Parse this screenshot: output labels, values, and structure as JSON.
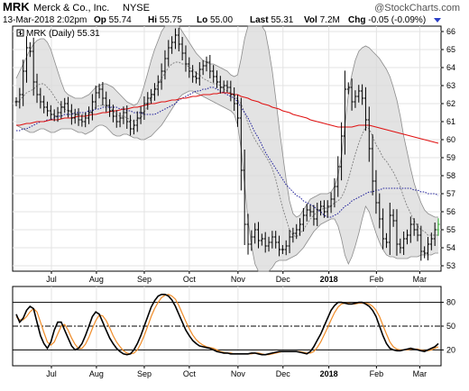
{
  "header": {
    "symbol": "MRK",
    "company": "Merck & Co., Inc.",
    "exchange": "NYSE",
    "watermark": "@StockCharts.com",
    "datetime": "13-Mar-2018 2:02pm",
    "quote": {
      "open_label": "Op",
      "open": "55.74",
      "high_label": "Hi",
      "high": "55.75",
      "low_label": "Lo",
      "low": "55.00",
      "last_label": "Last",
      "last": "55.31",
      "vol_label": "Vol",
      "vol": "7.2M",
      "chg_label": "Chg",
      "chg": "-0.05 (-0.09%)"
    }
  },
  "legend": {
    "label": "MRK (Daily) 55.31"
  },
  "chart_data": [
    {
      "type": "line",
      "name": "price",
      "ylim": [
        52.7,
        66.3
      ],
      "yticks": [
        53,
        54,
        55,
        56,
        57,
        58,
        59,
        60,
        61,
        62,
        63,
        64,
        65,
        66
      ],
      "xlabels": [
        {
          "label": "Jul",
          "pos": 0.125
        },
        {
          "label": "Aug",
          "pos": 0.285
        },
        {
          "label": "Sep",
          "pos": 0.455
        },
        {
          "label": "Oct",
          "pos": 0.615
        },
        {
          "label": "Nov",
          "pos": 0.788
        },
        {
          "label": "Dec",
          "pos": 0.948
        },
        {
          "label": "2018",
          "pos": 1.111
        },
        {
          "label": "Feb",
          "pos": 1.28
        },
        {
          "label": "Mar",
          "pos": 1.434
        }
      ],
      "close": [
        62.1,
        62.5,
        63.8,
        65.1,
        64.9,
        63.2,
        62.5,
        62.1,
        61.8,
        61.6,
        61.4,
        61.3,
        61.5,
        61.8,
        62.0,
        61.6,
        61.2,
        61.4,
        61.1,
        61.0,
        61.2,
        61.5,
        62.1,
        62.6,
        62.8,
        62.3,
        61.9,
        61.6,
        61.3,
        61.0,
        61.2,
        61.5,
        61.0,
        60.6,
        60.8,
        61.2,
        61.5,
        62.0,
        62.3,
        62.5,
        62.8,
        63.2,
        63.8,
        64.5,
        65.1,
        65.4,
        65.8,
        65.3,
        64.8,
        64.2,
        63.8,
        63.5,
        63.4,
        63.9,
        64.1,
        64.3,
        63.8,
        63.5,
        63.2,
        62.9,
        63.0,
        62.9,
        62.5,
        62.0,
        61.2,
        58.3,
        55.3,
        54.2,
        54.6,
        55.0,
        54.4,
        54.5,
        54.1,
        54.3,
        54.6,
        54.3,
        53.9,
        53.9,
        54.1,
        54.6,
        54.8,
        55.0,
        55.3,
        55.8,
        56.1,
        56.0,
        55.6,
        56.1,
        56.3,
        56.0,
        56.3,
        56.7,
        57.4,
        58.5,
        60.2,
        62.8,
        62.9,
        62.1,
        62.4,
        62.7,
        62.3,
        61.1,
        59.5,
        57.7,
        56.5,
        55.6,
        54.5,
        54.3,
        55.8,
        55.5,
        54.2,
        54.0,
        54.5,
        54.7,
        55.3,
        55.0,
        54.7,
        53.8,
        53.7,
        54.2,
        54.5,
        55.0,
        55.3
      ],
      "upper_band": [
        63.4,
        63.8,
        64.2,
        64.6,
        65.0,
        65.3,
        65.5,
        65.6,
        65.6,
        65.4,
        65.0,
        64.4,
        63.8,
        63.2,
        62.7,
        62.5,
        62.4,
        62.3,
        62.3,
        62.3,
        62.4,
        62.5,
        62.7,
        62.9,
        63.0,
        63.1,
        63.1,
        63.0,
        62.9,
        62.7,
        62.5,
        62.3,
        62.1,
        62.0,
        61.9,
        62.0,
        62.4,
        63.0,
        63.7,
        64.4,
        65.0,
        65.5,
        66.0,
        66.4,
        66.6,
        66.6,
        66.5,
        66.3,
        66.0,
        65.7,
        65.4,
        65.1,
        64.8,
        64.6,
        64.4,
        64.3,
        64.2,
        64.2,
        64.1,
        64.0,
        63.9,
        63.8,
        63.6,
        63.5,
        63.6,
        64.5,
        65.6,
        66.3,
        66.8,
        67.0,
        67.0,
        66.7,
        66.0,
        65.0,
        63.8,
        62.3,
        60.7,
        59.2,
        57.8,
        56.6,
        55.9,
        55.7,
        55.8,
        56.1,
        56.4,
        56.7,
        56.8,
        56.9,
        57.0,
        57.0,
        57.0,
        57.1,
        57.4,
        58.0,
        59.1,
        60.8,
        62.5,
        63.6,
        64.4,
        64.9,
        65.1,
        65.2,
        65.1,
        64.9,
        64.7,
        64.5,
        64.2,
        63.9,
        63.5,
        62.9,
        62.2,
        61.3,
        60.2,
        59.3,
        58.4,
        57.6,
        57.0,
        56.5,
        56.1,
        55.9,
        55.8,
        55.7,
        55.7
      ],
      "lower_band": [
        60.8,
        60.7,
        60.6,
        60.5,
        60.4,
        60.4,
        60.5,
        60.6,
        60.6,
        60.5,
        60.4,
        60.4,
        60.5,
        60.6,
        60.6,
        60.6,
        60.6,
        60.5,
        60.4,
        60.4,
        60.3,
        60.4,
        60.5,
        60.7,
        60.8,
        60.8,
        60.7,
        60.5,
        60.3,
        60.2,
        60.2,
        60.3,
        60.3,
        60.2,
        60.1,
        60.1,
        60.0,
        60.0,
        60.1,
        60.2,
        60.4,
        60.6,
        60.8,
        61.1,
        61.4,
        61.7,
        62.0,
        62.3,
        62.5,
        62.6,
        62.7,
        62.7,
        62.6,
        62.5,
        62.4,
        62.3,
        62.2,
        62.1,
        62.0,
        61.9,
        61.8,
        61.7,
        61.6,
        61.4,
        60.8,
        59.5,
        57.5,
        55.5,
        54.1,
        53.1,
        52.5,
        52.2,
        52.3,
        52.6,
        52.9,
        53.2,
        53.3,
        53.3,
        53.3,
        53.4,
        53.5,
        53.6,
        53.8,
        54.0,
        54.3,
        54.6,
        54.9,
        55.1,
        55.3,
        55.4,
        55.5,
        55.6,
        55.6,
        55.2,
        54.5,
        53.6,
        53.1,
        53.5,
        54.1,
        54.8,
        55.6,
        56.3,
        56.0,
        55.4,
        54.8,
        54.3,
        53.9,
        53.6,
        53.5,
        53.5,
        53.4,
        53.4,
        53.4,
        53.4,
        53.5,
        53.5,
        53.5,
        53.6,
        53.6,
        53.6,
        53.6,
        53.7,
        53.7
      ],
      "sma_20": [
        62.1,
        62.2,
        62.4,
        62.6,
        62.7,
        62.8,
        63.0,
        63.1,
        63.1,
        62.9,
        62.7,
        62.4,
        62.1,
        61.9,
        61.7,
        61.6,
        61.5,
        61.4,
        61.4,
        61.4,
        61.4,
        61.4,
        61.6,
        61.8,
        61.9,
        61.9,
        61.9,
        61.8,
        61.6,
        61.4,
        61.3,
        61.3,
        61.2,
        61.1,
        61.0,
        61.1,
        61.2,
        61.5,
        61.9,
        62.3,
        62.7,
        63.1,
        63.4,
        63.7,
        64.0,
        64.2,
        64.3,
        64.3,
        64.2,
        64.2,
        64.0,
        63.9,
        63.7,
        63.6,
        63.4,
        63.3,
        63.2,
        63.1,
        63.1,
        63.0,
        62.8,
        62.7,
        62.6,
        62.5,
        62.2,
        62.0,
        61.5,
        60.9,
        60.4,
        60.0,
        59.7,
        59.4,
        59.1,
        58.8,
        58.4,
        57.8,
        57.0,
        56.2,
        55.6,
        55.0,
        54.7,
        54.6,
        54.8,
        55.0,
        55.3,
        55.6,
        55.8,
        56.0,
        56.1,
        56.2,
        56.2,
        56.3,
        56.5,
        56.6,
        56.8,
        57.2,
        57.8,
        58.5,
        59.2,
        59.8,
        60.3,
        60.7,
        60.6,
        60.2,
        59.7,
        59.4,
        59.0,
        58.8,
        58.5,
        58.2,
        57.8,
        57.4,
        56.8,
        56.3,
        55.9,
        55.5,
        55.2,
        55.0,
        54.9,
        54.7,
        54.7,
        54.7,
        54.7
      ],
      "ma_50": [
        60.5,
        60.5,
        60.6,
        60.6,
        60.7,
        60.8,
        60.9,
        61.0,
        61.0,
        61.1,
        61.1,
        61.2,
        61.3,
        61.3,
        61.4,
        61.4,
        61.4,
        61.5,
        61.5,
        61.5,
        61.5,
        61.6,
        61.6,
        61.7,
        61.7,
        61.8,
        61.8,
        61.8,
        61.8,
        61.8,
        61.7,
        61.7,
        61.6,
        61.6,
        61.5,
        61.5,
        61.5,
        61.4,
        61.4,
        61.4,
        61.4,
        61.5,
        61.6,
        61.7,
        61.8,
        61.9,
        62.0,
        62.2,
        62.3,
        62.4,
        62.5,
        62.6,
        62.7,
        62.7,
        62.8,
        62.8,
        62.9,
        62.9,
        62.8,
        62.7,
        62.6,
        62.5,
        62.4,
        62.3,
        62.1,
        61.8,
        61.5,
        61.2,
        60.8,
        60.4,
        60.1,
        59.7,
        59.3,
        59.0,
        58.7,
        58.4,
        58.1,
        57.8,
        57.5,
        57.3,
        57.1,
        56.9,
        56.8,
        56.6,
        56.5,
        56.4,
        56.3,
        56.1,
        56.0,
        55.8,
        55.7,
        55.7,
        55.8,
        55.9,
        56.1,
        56.3,
        56.4,
        56.6,
        56.7,
        56.8,
        56.9,
        57.0,
        57.1,
        57.1,
        57.2,
        57.2,
        57.3,
        57.3,
        57.3,
        57.3,
        57.3,
        57.3,
        57.3,
        57.3,
        57.3,
        57.2,
        57.2,
        57.1,
        57.1,
        57.0,
        57.0,
        57.0,
        56.9
      ],
      "ma_200": [
        60.8,
        60.8,
        60.85,
        60.9,
        60.9,
        60.95,
        61.0,
        61.0,
        61.0,
        61.05,
        61.1,
        61.1,
        61.1,
        61.15,
        61.2,
        61.2,
        61.2,
        61.25,
        61.3,
        61.3,
        61.3,
        61.35,
        61.4,
        61.4,
        61.45,
        61.5,
        61.5,
        61.55,
        61.6,
        61.6,
        61.65,
        61.7,
        61.7,
        61.75,
        61.8,
        61.8,
        61.85,
        61.9,
        61.95,
        62.0,
        62.0,
        62.05,
        62.1,
        62.1,
        62.15,
        62.2,
        62.2,
        62.25,
        62.3,
        62.3,
        62.35,
        62.4,
        62.4,
        62.45,
        62.5,
        62.5,
        62.5,
        62.55,
        62.55,
        62.6,
        62.6,
        62.6,
        62.55,
        62.5,
        62.5,
        62.4,
        62.35,
        62.3,
        62.2,
        62.15,
        62.1,
        62.0,
        61.95,
        61.9,
        61.8,
        61.75,
        61.7,
        61.6,
        61.55,
        61.5,
        61.4,
        61.35,
        61.3,
        61.25,
        61.2,
        61.1,
        61.05,
        61.0,
        60.95,
        60.9,
        60.85,
        60.8,
        60.75,
        60.7,
        60.7,
        60.7,
        60.7,
        60.7,
        60.75,
        60.8,
        60.8,
        60.8,
        60.8,
        60.75,
        60.7,
        60.65,
        60.6,
        60.55,
        60.5,
        60.45,
        60.4,
        60.35,
        60.3,
        60.25,
        60.2,
        60.15,
        60.1,
        60.05,
        60.0,
        59.95,
        59.9,
        59.85,
        59.8
      ]
    },
    {
      "type": "line",
      "name": "stochastic",
      "ylim": [
        0,
        100
      ],
      "yticks": [
        20,
        50,
        80
      ],
      "reference_lines": [
        20,
        50,
        80
      ],
      "k_line": [
        65,
        55,
        60,
        70,
        75,
        72,
        55,
        38,
        28,
        22,
        30,
        45,
        55,
        55,
        45,
        35,
        25,
        20,
        22,
        28,
        38,
        50,
        62,
        68,
        65,
        55,
        45,
        35,
        28,
        22,
        18,
        15,
        14,
        15,
        20,
        28,
        38,
        50,
        62,
        74,
        82,
        88,
        90,
        90,
        88,
        83,
        75,
        65,
        55,
        45,
        38,
        32,
        28,
        25,
        24,
        23,
        22,
        20,
        18,
        17,
        16,
        16,
        15,
        15,
        15,
        15,
        15,
        15,
        16,
        16,
        15,
        14,
        14,
        15,
        16,
        17,
        18,
        18,
        18,
        18,
        18,
        18,
        17,
        16,
        15,
        18,
        24,
        32,
        40,
        50,
        60,
        70,
        76,
        80,
        80,
        79,
        78,
        78,
        79,
        80,
        80,
        78,
        75,
        70,
        62,
        50,
        38,
        28,
        22,
        20,
        19,
        19,
        20,
        21,
        22,
        21,
        20,
        19,
        18,
        20,
        22,
        24,
        28
      ],
      "d_line": [
        62,
        58,
        58,
        62,
        68,
        72,
        68,
        55,
        42,
        30,
        26,
        30,
        40,
        50,
        52,
        45,
        35,
        27,
        22,
        22,
        27,
        36,
        47,
        57,
        64,
        63,
        57,
        48,
        38,
        30,
        24,
        19,
        16,
        15,
        16,
        20,
        28,
        38,
        50,
        62,
        72,
        80,
        86,
        89,
        90,
        88,
        84,
        76,
        66,
        56,
        47,
        39,
        33,
        29,
        26,
        24,
        23,
        22,
        20,
        18,
        17,
        16,
        16,
        15,
        15,
        15,
        15,
        15,
        15,
        16,
        16,
        15,
        14,
        14,
        15,
        16,
        17,
        18,
        18,
        18,
        18,
        18,
        18,
        17,
        16,
        16,
        18,
        23,
        30,
        39,
        48,
        58,
        67,
        74,
        78,
        79,
        79,
        78,
        78,
        79,
        79,
        79,
        78,
        75,
        70,
        62,
        51,
        40,
        30,
        24,
        21,
        20,
        20,
        20,
        21,
        21,
        21,
        20,
        19,
        19,
        20,
        22,
        24
      ]
    }
  ],
  "colors": {
    "price_bar": "#000000",
    "band_fill": "#d9d9d9",
    "band_edge": "#8c8c8c",
    "sma_20": "#808080",
    "ma_50": "#1c1c9a",
    "ma_200": "#e01010",
    "stoch_k": "#000000",
    "stoch_d": "#f08c28",
    "last_bar": "#22aa22",
    "down_marker": "#2b3fc7"
  }
}
